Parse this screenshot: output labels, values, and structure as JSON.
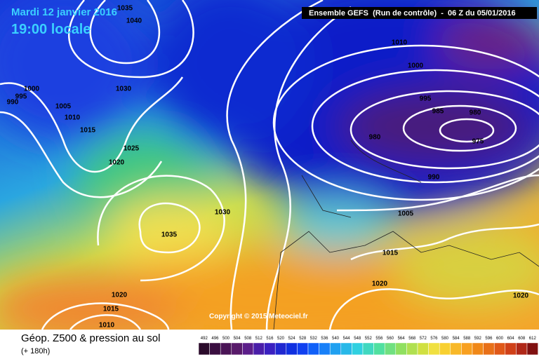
{
  "header": {
    "date": "Mardi 12 janvier 2016",
    "time": "19:00 locale",
    "run": "Ensemble GEFS  (Run de contrôle)  -  06 Z du 05/01/2016"
  },
  "isobar_labels": [
    "1035",
    "1040",
    "1000",
    "995",
    "990",
    "1005",
    "1010",
    "1015",
    "1030",
    "1025",
    "1020",
    "1010",
    "1000",
    "995",
    "985",
    "980",
    "980",
    "975",
    "990",
    "1030",
    "1035",
    "1005",
    "1015",
    "1020",
    "1020",
    "1020",
    "1015",
    "1010"
  ],
  "copyright": "Copyright © 2015 Meteociel.fr",
  "footer": {
    "title": "Géop. Z500 & pression au sol",
    "subtitle": "(+ 180h)"
  },
  "scale": {
    "labels": [
      492,
      496,
      500,
      504,
      508,
      512,
      516,
      520,
      524,
      528,
      532,
      536,
      540,
      544,
      548,
      552,
      556,
      560,
      564,
      568,
      572,
      576,
      580,
      584,
      588,
      592,
      596,
      600,
      604,
      608,
      612
    ]
  }
}
